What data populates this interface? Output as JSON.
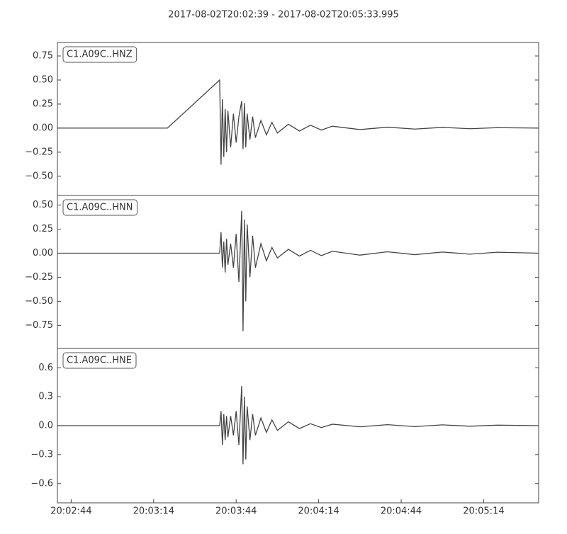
{
  "chart_data": [
    {
      "type": "line",
      "title": "2017-08-02T20:02:39  -  2017-08-02T20:05:33.995",
      "x": [
        0,
        20,
        40,
        59,
        59.5,
        60,
        60.5,
        61,
        61.5,
        62,
        63,
        64,
        65,
        66,
        67,
        67.5,
        68,
        68.5,
        69,
        70,
        71,
        72,
        74,
        76,
        78,
        80,
        84,
        88,
        92,
        96,
        100,
        110,
        120,
        130,
        140,
        150,
        160,
        175
      ],
      "series": [
        {
          "name": "C1.A09C..HNZ",
          "color": "#444444",
          "values": [
            0,
            0,
            0,
            0.5,
            -0.38,
            0.3,
            -0.3,
            0.2,
            -0.25,
            0.18,
            -0.2,
            0.15,
            -0.15,
            0.12,
            0.28,
            -0.22,
            0.26,
            -0.2,
            0.15,
            -0.12,
            0.12,
            -0.1,
            0.08,
            -0.07,
            0.06,
            -0.05,
            0.04,
            -0.03,
            0.03,
            -0.02,
            0.02,
            -0.015,
            0.01,
            -0.01,
            0.008,
            -0.006,
            0.005,
            0
          ]
        }
      ],
      "xlim": [
        0,
        174.995
      ],
      "ylim": [
        -0.7,
        0.89
      ],
      "yticks": [
        {
          "value": 0.75,
          "label": "0.75"
        },
        {
          "value": 0.5,
          "label": "0.50"
        },
        {
          "value": 0.25,
          "label": "0.25"
        },
        {
          "value": 0,
          "label": "0.00"
        },
        {
          "value": -0.25,
          "label": "−0.25"
        },
        {
          "value": -0.5,
          "label": "−0.50"
        }
      ]
    },
    {
      "type": "line",
      "x": [
        0,
        20,
        40,
        59,
        59.5,
        60,
        60.5,
        61,
        61.5,
        62,
        63,
        64,
        65,
        66,
        67,
        67.5,
        68,
        68.5,
        69,
        70,
        71,
        72,
        74,
        76,
        78,
        80,
        84,
        88,
        92,
        96,
        100,
        110,
        120,
        130,
        140,
        150,
        160,
        175
      ],
      "series": [
        {
          "name": "C1.A09C..HNN",
          "color": "#444444",
          "values": [
            0,
            0,
            0,
            0,
            0.22,
            -0.15,
            0.12,
            -0.2,
            0.15,
            -0.12,
            0.1,
            -0.15,
            0.2,
            -0.3,
            0.44,
            -0.81,
            0.35,
            -0.5,
            0.3,
            -0.25,
            0.18,
            -0.15,
            0.1,
            -0.08,
            0.06,
            -0.05,
            0.04,
            -0.03,
            0.03,
            -0.025,
            0.02,
            -0.02,
            0.015,
            -0.015,
            0.012,
            -0.01,
            0.01,
            0
          ]
        }
      ],
      "xlim": [
        0,
        174.995
      ],
      "ylim": [
        -0.99,
        0.6
      ],
      "yticks": [
        {
          "value": 0.5,
          "label": "0.50"
        },
        {
          "value": 0.25,
          "label": "0.25"
        },
        {
          "value": 0,
          "label": "0.00"
        },
        {
          "value": -0.25,
          "label": "−0.25"
        },
        {
          "value": -0.5,
          "label": "−0.50"
        },
        {
          "value": -0.75,
          "label": "−0.75"
        }
      ]
    },
    {
      "type": "line",
      "x": [
        0,
        20,
        40,
        59,
        59.5,
        60,
        60.5,
        61,
        61.5,
        62,
        63,
        64,
        65,
        66,
        67,
        67.5,
        68,
        68.5,
        69,
        70,
        71,
        72,
        74,
        76,
        78,
        80,
        84,
        88,
        92,
        96,
        100,
        110,
        120,
        130,
        140,
        150,
        160,
        175
      ],
      "series": [
        {
          "name": "C1.A09C..HNE",
          "color": "#444444",
          "values": [
            0,
            0,
            0,
            0,
            0.15,
            -0.2,
            0.12,
            -0.15,
            0.1,
            -0.12,
            0.1,
            -0.1,
            0.15,
            -0.2,
            0.41,
            -0.4,
            0.3,
            -0.35,
            0.2,
            -0.15,
            0.12,
            -0.1,
            0.08,
            -0.07,
            0.06,
            -0.05,
            0.04,
            -0.03,
            0.02,
            -0.02,
            0.015,
            -0.012,
            0.01,
            -0.01,
            0.008,
            -0.006,
            0.005,
            0
          ]
        }
      ],
      "xlim": [
        0,
        174.995
      ],
      "ylim": [
        -0.8,
        0.8
      ],
      "yticks": [
        {
          "value": 0.6,
          "label": "0.6"
        },
        {
          "value": 0.3,
          "label": "0.3"
        },
        {
          "value": 0,
          "label": "0.0"
        },
        {
          "value": -0.3,
          "label": "−0.3"
        },
        {
          "value": -0.6,
          "label": "−0.6"
        }
      ],
      "xticks": [
        {
          "value": 5,
          "label": "20:02:44"
        },
        {
          "value": 35,
          "label": "20:03:14"
        },
        {
          "value": 65,
          "label": "20:03:44"
        },
        {
          "value": 95,
          "label": "20:04:14"
        },
        {
          "value": 125,
          "label": "20:04:44"
        },
        {
          "value": 155,
          "label": "20:05:14"
        }
      ]
    }
  ]
}
